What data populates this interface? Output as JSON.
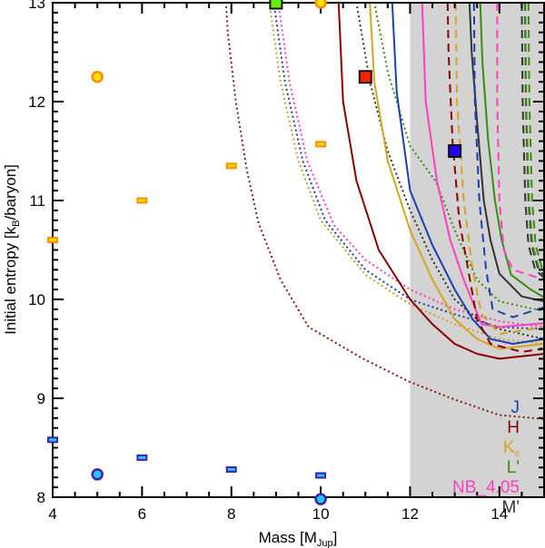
{
  "chart_data": {
    "type": "line",
    "xlabel": "Mass [M",
    "xlabel_sub": "Jup",
    "xlabel_end": "]",
    "ylabel": "Initial entropy [k",
    "ylabel_sub": "B",
    "ylabel_end": "/baryon]",
    "xlim": [
      4,
      15
    ],
    "ylim": [
      8,
      13
    ],
    "xticks": [
      4,
      6,
      8,
      10,
      12,
      14
    ],
    "yticks": [
      8,
      9,
      10,
      11,
      12,
      13
    ],
    "shaded_region": {
      "x_from": 12,
      "x_to": 15,
      "color": "#d3d3d3"
    },
    "legend_position": "bottom-right",
    "legend": [
      {
        "label": "J",
        "color": "#1a3fb0"
      },
      {
        "label": "H",
        "color": "#8b0000"
      },
      {
        "label": "K",
        "sub": "s",
        "color": "#d4a520"
      },
      {
        "label": "L'",
        "color": "#3b8a14"
      },
      {
        "label": "NB_4.05",
        "color": "#ff3fc0"
      },
      {
        "label": "M'",
        "color": "#333333"
      }
    ],
    "series": [
      {
        "name": "H dotted",
        "color": "#8b1a1a",
        "style": "dotted",
        "points": [
          [
            7.88,
            13
          ],
          [
            7.92,
            12.7
          ],
          [
            8.1,
            12
          ],
          [
            8.35,
            11.3
          ],
          [
            8.61,
            10.77
          ],
          [
            9.1,
            10.2
          ],
          [
            9.73,
            9.72
          ],
          [
            10.95,
            9.4
          ],
          [
            11.97,
            9.17
          ],
          [
            12.98,
            8.99
          ],
          [
            14.0,
            8.83
          ],
          [
            15,
            8.79
          ]
        ]
      },
      {
        "name": "Ks dotted",
        "color": "#c9a030",
        "style": "dotted",
        "points": [
          [
            8.85,
            13
          ],
          [
            9.1,
            12.2
          ],
          [
            9.5,
            11.4
          ],
          [
            10,
            10.8
          ],
          [
            11,
            10.25
          ],
          [
            12,
            9.95
          ],
          [
            13,
            9.75
          ],
          [
            14,
            9.6
          ],
          [
            15,
            9.55
          ]
        ]
      },
      {
        "name": "J dotted",
        "color": "#1a3fb0",
        "style": "dotted",
        "points": [
          [
            8.95,
            13
          ],
          [
            9.2,
            12.2
          ],
          [
            9.6,
            11.4
          ],
          [
            10.1,
            10.8
          ],
          [
            11,
            10.3
          ],
          [
            12,
            10.0
          ],
          [
            13,
            9.85
          ],
          [
            14,
            9.72
          ],
          [
            15,
            9.7
          ]
        ]
      },
      {
        "name": "NB_4.05 dotted",
        "color": "#ff3fc0",
        "style": "dotted",
        "points": [
          [
            9.05,
            13
          ],
          [
            9.3,
            12.2
          ],
          [
            9.7,
            11.4
          ],
          [
            10.3,
            10.75
          ],
          [
            11,
            10.4
          ],
          [
            12,
            10.1
          ],
          [
            13,
            9.9
          ],
          [
            14,
            9.78
          ],
          [
            15,
            9.72
          ]
        ]
      },
      {
        "name": "M' dotted",
        "color": "#333333",
        "style": "dotted",
        "points": [
          [
            10.8,
            13
          ],
          [
            11.1,
            12.2
          ],
          [
            11.5,
            11.5
          ],
          [
            12,
            10.9
          ],
          [
            12.5,
            10.4
          ],
          [
            13,
            10.0
          ],
          [
            13.5,
            9.8
          ],
          [
            14,
            9.7
          ],
          [
            15,
            9.6
          ]
        ]
      },
      {
        "name": "L' dotted",
        "color": "#3b8a14",
        "style": "dotted",
        "points": [
          [
            11.2,
            13
          ],
          [
            11.5,
            12.3
          ],
          [
            12,
            11.55
          ],
          [
            12.58,
            11.19
          ],
          [
            13,
            10.7
          ],
          [
            13.5,
            10.2
          ],
          [
            14,
            9.98
          ],
          [
            15,
            9.88
          ]
        ]
      },
      {
        "name": "H solid",
        "color": "#8b0000",
        "style": "solid",
        "points": [
          [
            10.4,
            13
          ],
          [
            10.5,
            12
          ],
          [
            10.8,
            11.2
          ],
          [
            11.3,
            10.5
          ],
          [
            12,
            10.0
          ],
          [
            12.5,
            9.75
          ],
          [
            13,
            9.55
          ],
          [
            13.5,
            9.45
          ],
          [
            14,
            9.4
          ],
          [
            15,
            9.45
          ]
        ]
      },
      {
        "name": "Ks solid",
        "color": "#d4a520",
        "style": "solid",
        "points": [
          [
            11.1,
            13
          ],
          [
            11.2,
            12.2
          ],
          [
            11.5,
            11.4
          ],
          [
            12,
            10.7
          ],
          [
            12.5,
            10.2
          ],
          [
            13,
            9.8
          ],
          [
            13.5,
            9.6
          ],
          [
            14,
            9.5
          ],
          [
            15,
            9.55
          ]
        ]
      },
      {
        "name": "J solid",
        "color": "#1a3fb0",
        "style": "solid",
        "points": [
          [
            11.6,
            13
          ],
          [
            11.7,
            12.1
          ],
          [
            12,
            11.1
          ],
          [
            12.5,
            10.55
          ],
          [
            13,
            10.1
          ],
          [
            13.4,
            9.8
          ],
          [
            13.8,
            9.6
          ],
          [
            14.3,
            9.55
          ],
          [
            15,
            9.6
          ]
        ]
      },
      {
        "name": "NB_4.05 solid",
        "color": "#ff3fc0",
        "style": "solid",
        "points": [
          [
            12.27,
            13
          ],
          [
            12.35,
            12.0
          ],
          [
            12.6,
            11.2
          ],
          [
            12.9,
            10.6
          ],
          [
            13.2,
            10.2
          ],
          [
            13.6,
            9.75
          ],
          [
            14,
            9.72
          ],
          [
            15,
            9.76
          ]
        ]
      },
      {
        "name": "M' solid",
        "color": "#333333",
        "style": "solid",
        "points": [
          [
            13.33,
            13
          ],
          [
            13.38,
            12.5
          ],
          [
            13.5,
            11.8
          ],
          [
            13.65,
            11.0
          ],
          [
            13.8,
            10.6
          ],
          [
            14,
            10.26
          ],
          [
            14.5,
            10.03
          ],
          [
            15,
            9.98
          ]
        ]
      },
      {
        "name": "L' solid",
        "color": "#3b8a14",
        "style": "solid",
        "points": [
          [
            13.57,
            13
          ],
          [
            13.62,
            12.4
          ],
          [
            13.75,
            11.6
          ],
          [
            13.9,
            11.0
          ],
          [
            14.05,
            10.6
          ],
          [
            14.26,
            10.25
          ],
          [
            14.7,
            10.1
          ],
          [
            15,
            10.02
          ]
        ]
      },
      {
        "name": "H dashed",
        "color": "#8b0000",
        "style": "dashed",
        "points": [
          [
            12.84,
            13
          ],
          [
            12.86,
            12.5
          ],
          [
            12.95,
            11.6
          ],
          [
            13.1,
            10.8
          ],
          [
            13.3,
            10.3
          ],
          [
            13.5,
            9.8
          ],
          [
            13.8,
            9.55
          ],
          [
            14.5,
            9.47
          ],
          [
            15,
            9.5
          ]
        ]
      },
      {
        "name": "Ks dashed",
        "color": "#d4a520",
        "style": "dashed",
        "points": [
          [
            13.02,
            13
          ],
          [
            13.05,
            12
          ],
          [
            13.2,
            11
          ],
          [
            13.4,
            10.3
          ],
          [
            13.6,
            9.85
          ],
          [
            14.0,
            9.65
          ],
          [
            15,
            9.72
          ]
        ]
      },
      {
        "name": "J dashed",
        "color": "#1a3fb0",
        "style": "dashed",
        "points": [
          [
            13.43,
            13
          ],
          [
            13.45,
            12
          ],
          [
            13.55,
            11
          ],
          [
            13.7,
            10.3
          ],
          [
            13.85,
            9.9
          ],
          [
            14.3,
            9.82
          ],
          [
            15,
            9.92
          ]
        ]
      },
      {
        "name": "NB_4.05 dashed",
        "color": "#ff3fc0",
        "style": "dashed",
        "points": [
          [
            13.95,
            13
          ],
          [
            13.95,
            12
          ],
          [
            14.0,
            11
          ],
          [
            14.1,
            10.5
          ],
          [
            14.3,
            10.3
          ],
          [
            15,
            10.2
          ]
        ]
      },
      {
        "name": "M' dashed",
        "color": "#333333",
        "style": "dashed",
        "points": [
          [
            14.5,
            13
          ],
          [
            14.52,
            12
          ],
          [
            14.58,
            11
          ],
          [
            14.65,
            10.55
          ],
          [
            14.8,
            10.3
          ],
          [
            15,
            10.22
          ]
        ]
      },
      {
        "name": "L' dashed",
        "color": "#3b8a14",
        "style": "dashed",
        "points": [
          [
            14.58,
            13
          ],
          [
            14.6,
            12
          ],
          [
            14.66,
            11
          ],
          [
            14.74,
            10.55
          ],
          [
            14.88,
            10.32
          ],
          [
            15,
            10.26
          ]
        ]
      }
    ],
    "markers": [
      {
        "shape": "circle",
        "x": 5,
        "y": 12.25,
        "fill": "#ffe000",
        "stroke": "#ff8c00"
      },
      {
        "shape": "circle",
        "x": 10,
        "y": 13.0,
        "fill": "#ffe000",
        "stroke": "#ff8c00"
      },
      {
        "shape": "dash",
        "x": 4,
        "y": 10.6,
        "fill": "#ffe000",
        "stroke": "#ff8c00"
      },
      {
        "shape": "dash",
        "x": 6,
        "y": 11.0,
        "fill": "#ffe000",
        "stroke": "#ff8c00"
      },
      {
        "shape": "dash",
        "x": 8,
        "y": 11.35,
        "fill": "#ffe000",
        "stroke": "#ff8c00"
      },
      {
        "shape": "dash",
        "x": 10,
        "y": 11.57,
        "fill": "#ffe000",
        "stroke": "#ff8c00"
      },
      {
        "shape": "square",
        "x": 9,
        "y": 13.0,
        "fill": "#66ee00",
        "stroke": "#111111"
      },
      {
        "shape": "square",
        "x": 11,
        "y": 12.25,
        "fill": "#ff2000",
        "stroke": "#111111"
      },
      {
        "shape": "square",
        "x": 13,
        "y": 11.5,
        "fill": "#2200ff",
        "stroke": "#111111"
      },
      {
        "shape": "dash",
        "x": 4,
        "y": 8.58,
        "fill": "#20c8ff",
        "stroke": "#4020b0"
      },
      {
        "shape": "dash",
        "x": 6,
        "y": 8.4,
        "fill": "#20c8ff",
        "stroke": "#4020b0"
      },
      {
        "shape": "dash",
        "x": 8,
        "y": 8.28,
        "fill": "#20c8ff",
        "stroke": "#4020b0"
      },
      {
        "shape": "dash",
        "x": 10,
        "y": 8.22,
        "fill": "#20c8ff",
        "stroke": "#4020b0"
      },
      {
        "shape": "circle",
        "x": 5,
        "y": 8.23,
        "fill": "#20c8ff",
        "stroke": "#4020b0"
      },
      {
        "shape": "circle",
        "x": 10,
        "y": 7.98,
        "fill": "#20c8ff",
        "stroke": "#4020b0"
      }
    ]
  }
}
